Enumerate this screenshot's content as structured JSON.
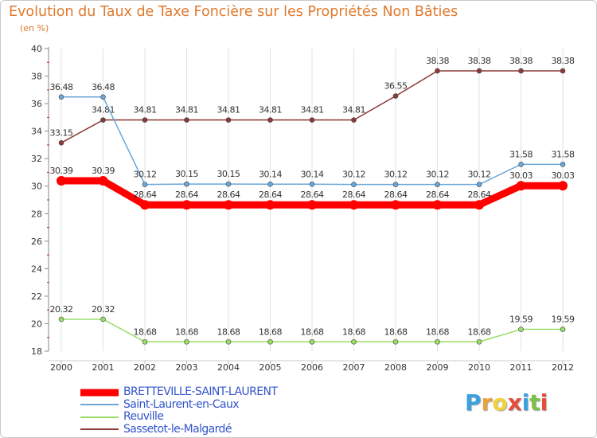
{
  "chart_data": {
    "type": "line",
    "title": "Evolution du Taux de Taxe Foncière sur les Propriétés Non Bâties",
    "ylabel": "(en %)",
    "xlabel": "",
    "ylim": [
      18,
      40
    ],
    "yticks": [
      18,
      20,
      22,
      24,
      26,
      28,
      30,
      32,
      34,
      36,
      38,
      40
    ],
    "categories": [
      "2000",
      "2001",
      "2002",
      "2003",
      "2004",
      "2005",
      "2006",
      "2007",
      "2008",
      "2009",
      "2010",
      "2011",
      "2012"
    ],
    "series": [
      {
        "name": "Sassetot-le-Malgardé",
        "color": "#8b3a3a",
        "values": [
          33.15,
          34.81,
          34.81,
          34.81,
          34.81,
          34.81,
          34.81,
          34.81,
          36.55,
          38.38,
          38.38,
          38.38,
          38.38
        ],
        "labels": [
          "33.15",
          "34.81",
          "34.81",
          "34.81",
          "34.81",
          "34.81",
          "34.81",
          "34.81",
          "36.55",
          "38.38",
          "38.38",
          "38.38",
          "38.38"
        ]
      },
      {
        "name": "Saint-Laurent-en-Caux",
        "color": "#6aa6d8",
        "values": [
          36.48,
          36.48,
          30.12,
          30.15,
          30.15,
          30.14,
          30.14,
          30.12,
          30.12,
          30.12,
          30.12,
          31.58,
          31.58
        ],
        "labels": [
          "36.48",
          "36.48",
          "30.12",
          "30.15",
          "30.15",
          "30.14",
          "30.14",
          "30.12",
          "30.12",
          "30.12",
          "30.12",
          "31.58",
          "31.58"
        ]
      },
      {
        "name": "Reuville",
        "color": "#99dd66",
        "values": [
          20.32,
          20.32,
          18.68,
          18.68,
          18.68,
          18.68,
          18.68,
          18.68,
          18.68,
          18.68,
          18.68,
          19.59,
          19.59
        ],
        "labels": [
          "20.32",
          "20.32",
          "18.68",
          "18.68",
          "18.68",
          "18.68",
          "18.68",
          "18.68",
          "18.68",
          "18.68",
          "18.68",
          "19.59",
          "19.59"
        ]
      },
      {
        "name": "BRETTEVILLE-SAINT-LAURENT",
        "color": "#ff0000",
        "values": [
          30.39,
          30.39,
          28.64,
          28.64,
          28.64,
          28.64,
          28.64,
          28.64,
          28.64,
          28.64,
          28.64,
          30.03,
          30.03
        ],
        "labels": [
          "30.39",
          "30.39",
          "28.64",
          "28.64",
          "28.64",
          "28.64",
          "28.64",
          "28.64",
          "28.64",
          "28.64",
          "28.64",
          "30.03",
          "30.03"
        ]
      }
    ],
    "legend": [
      {
        "name": "BRETTEVILLE-SAINT-LAURENT",
        "color": "#ff0000",
        "text_color": "#3355cc"
      },
      {
        "name": "Saint-Laurent-en-Caux",
        "color": "#6aa6d8",
        "text_color": "#3355cc"
      },
      {
        "name": "Reuville",
        "color": "#99dd66",
        "text_color": "#3355cc"
      },
      {
        "name": "Sassetot-le-Malgardé",
        "color": "#8b3a3a",
        "text_color": "#3355cc"
      }
    ]
  },
  "logo": {
    "letters": [
      "P",
      "r",
      "o",
      "x",
      "i",
      "t",
      "i"
    ],
    "colors": [
      "#3aa0e0",
      "#e9a13a",
      "#f0d23a",
      "#e64b3c",
      "#3aa0e0",
      "#7cc04a",
      "#e64b3c"
    ]
  }
}
